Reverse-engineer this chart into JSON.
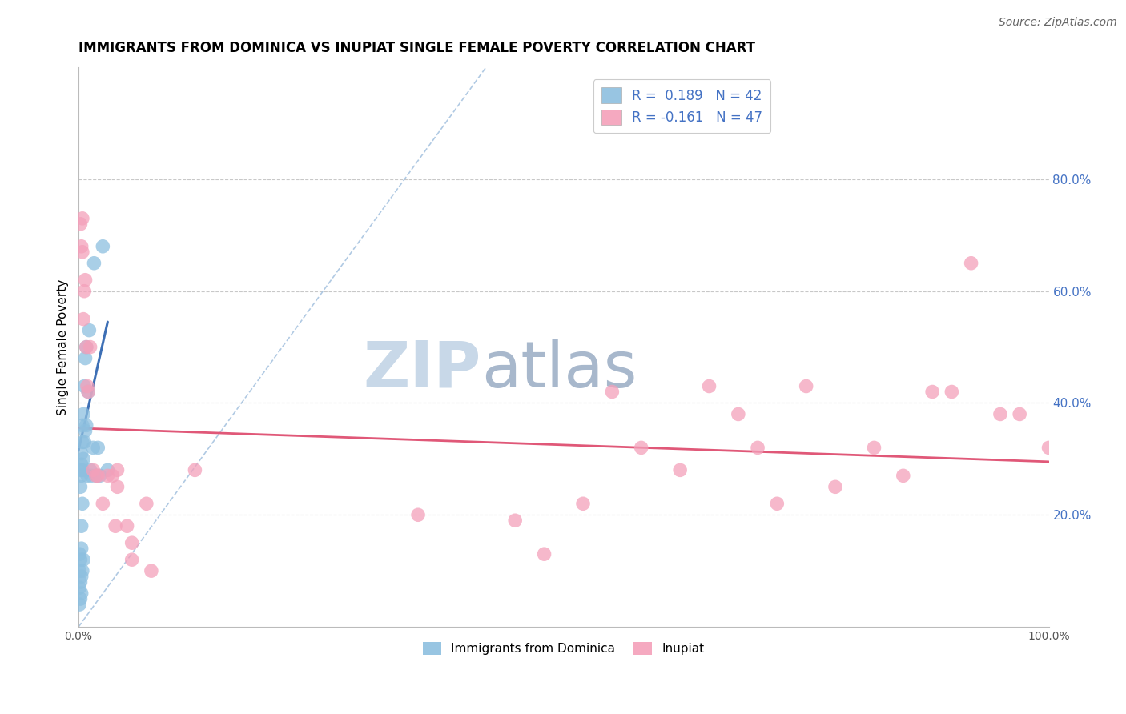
{
  "title": "IMMIGRANTS FROM DOMINICA VS INUPIAT SINGLE FEMALE POVERTY CORRELATION CHART",
  "source": "Source: ZipAtlas.com",
  "ylabel": "Single Female Poverty",
  "xlim": [
    0.0,
    1.0
  ],
  "ylim": [
    0.0,
    1.0
  ],
  "legend_label1": "Immigrants from Dominica",
  "legend_label2": "Inupiat",
  "blue_color": "#8dbfdf",
  "pink_color": "#f4a0ba",
  "blue_line_color": "#3d6fb5",
  "pink_line_color": "#e05878",
  "dashed_line_color": "#a8c4e0",
  "watermark_zip_color": "#c8d8e8",
  "watermark_atlas_color": "#a8b8cc",
  "grid_color": "#c8c8c8",
  "blue_scatter_x": [
    0.001,
    0.001,
    0.001,
    0.001,
    0.002,
    0.002,
    0.002,
    0.002,
    0.002,
    0.003,
    0.003,
    0.003,
    0.003,
    0.003,
    0.003,
    0.003,
    0.004,
    0.004,
    0.004,
    0.004,
    0.004,
    0.005,
    0.005,
    0.005,
    0.006,
    0.006,
    0.007,
    0.007,
    0.008,
    0.008,
    0.009,
    0.01,
    0.011,
    0.012,
    0.013,
    0.015,
    0.016,
    0.018,
    0.02,
    0.022,
    0.025,
    0.03
  ],
  "blue_scatter_y": [
    0.04,
    0.07,
    0.1,
    0.13,
    0.05,
    0.08,
    0.12,
    0.25,
    0.28,
    0.06,
    0.09,
    0.14,
    0.18,
    0.27,
    0.29,
    0.31,
    0.1,
    0.22,
    0.28,
    0.33,
    0.36,
    0.12,
    0.3,
    0.38,
    0.33,
    0.43,
    0.35,
    0.48,
    0.36,
    0.5,
    0.27,
    0.42,
    0.53,
    0.28,
    0.27,
    0.32,
    0.65,
    0.27,
    0.32,
    0.27,
    0.68,
    0.28
  ],
  "pink_scatter_x": [
    0.002,
    0.003,
    0.004,
    0.004,
    0.005,
    0.006,
    0.007,
    0.008,
    0.009,
    0.01,
    0.012,
    0.015,
    0.018,
    0.02,
    0.025,
    0.03,
    0.035,
    0.038,
    0.04,
    0.04,
    0.05,
    0.055,
    0.055,
    0.07,
    0.075,
    0.12,
    0.35,
    0.45,
    0.48,
    0.52,
    0.55,
    0.58,
    0.62,
    0.65,
    0.68,
    0.7,
    0.72,
    0.75,
    0.78,
    0.82,
    0.85,
    0.88,
    0.9,
    0.92,
    0.95,
    0.97,
    1.0
  ],
  "pink_scatter_y": [
    0.72,
    0.68,
    0.73,
    0.67,
    0.55,
    0.6,
    0.62,
    0.5,
    0.43,
    0.42,
    0.5,
    0.28,
    0.27,
    0.27,
    0.22,
    0.27,
    0.27,
    0.18,
    0.25,
    0.28,
    0.18,
    0.12,
    0.15,
    0.22,
    0.1,
    0.28,
    0.2,
    0.19,
    0.13,
    0.22,
    0.42,
    0.32,
    0.28,
    0.43,
    0.38,
    0.32,
    0.22,
    0.43,
    0.25,
    0.32,
    0.27,
    0.42,
    0.42,
    0.65,
    0.38,
    0.38,
    0.32
  ],
  "blue_trend_x": [
    0.0,
    0.03
  ],
  "blue_trend_y": [
    0.315,
    0.545
  ],
  "pink_trend_x": [
    0.0,
    1.0
  ],
  "pink_trend_y": [
    0.355,
    0.295
  ]
}
